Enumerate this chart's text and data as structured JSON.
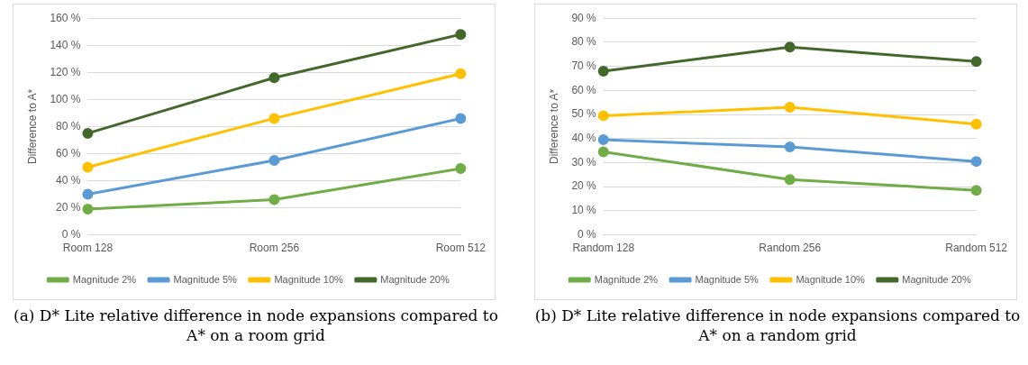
{
  "chart_data": [
    {
      "type": "line",
      "ylabel": "Difference to A*",
      "categories": [
        "Room 128",
        "Room 256",
        "Room 512"
      ],
      "series": [
        {
          "name": "Magnitude 2%",
          "color": "#70ad47",
          "values": [
            19,
            26,
            49
          ]
        },
        {
          "name": "Magnitude 5%",
          "color": "#5b9bd5",
          "values": [
            30,
            55,
            86
          ]
        },
        {
          "name": "Magnitude 10%",
          "color": "#ffc000",
          "values": [
            50,
            86,
            119
          ]
        },
        {
          "name": "Magnitude 20%",
          "color": "#43682b",
          "values": [
            75,
            116,
            148
          ]
        }
      ],
      "ylim": [
        0,
        160
      ],
      "yticks": [
        {
          "value": 0,
          "label": "0 %"
        },
        {
          "value": 20,
          "label": "20 %"
        },
        {
          "value": 40,
          "label": "40 %"
        },
        {
          "value": 60,
          "label": "60 %"
        },
        {
          "value": 80,
          "label": "80 %"
        },
        {
          "value": 100,
          "label": "100 %"
        },
        {
          "value": 120,
          "label": "120 %"
        },
        {
          "value": 140,
          "label": "140 %"
        },
        {
          "value": 160,
          "label": "160 %"
        }
      ],
      "grid": "y",
      "legend": "bottom",
      "marker": "circle",
      "line_style": "solid",
      "annotations": [
        "(a) D* Lite relative difference in node expansions compared to A* on a room grid"
      ]
    },
    {
      "type": "line",
      "ylabel": "Difference to A*",
      "categories": [
        "Random 128",
        "Random 256",
        "Random 512"
      ],
      "series": [
        {
          "name": "Magnitude 2%",
          "color": "#70ad47",
          "values": [
            34.5,
            23,
            18.5
          ]
        },
        {
          "name": "Magnitude 5%",
          "color": "#5b9bd5",
          "values": [
            39.5,
            36.5,
            30.5
          ]
        },
        {
          "name": "Magnitude 10%",
          "color": "#ffc000",
          "values": [
            49.5,
            53,
            46
          ]
        },
        {
          "name": "Magnitude 20%",
          "color": "#43682b",
          "values": [
            68,
            78,
            72
          ]
        }
      ],
      "ylim": [
        0,
        90
      ],
      "yticks": [
        {
          "value": 0,
          "label": "0 %"
        },
        {
          "value": 10,
          "label": "10 %"
        },
        {
          "value": 20,
          "label": "20 %"
        },
        {
          "value": 30,
          "label": "30 %"
        },
        {
          "value": 40,
          "label": "40 %"
        },
        {
          "value": 50,
          "label": "50 %"
        },
        {
          "value": 60,
          "label": "60 %"
        },
        {
          "value": 70,
          "label": "70 %"
        },
        {
          "value": 80,
          "label": "80 %"
        },
        {
          "value": 90,
          "label": "90 %"
        }
      ],
      "grid": "y",
      "legend": "bottom",
      "marker": "circle",
      "line_style": "solid",
      "annotations": [
        "(b) D* Lite relative difference in node expansions compared to A* on a random grid"
      ]
    }
  ]
}
